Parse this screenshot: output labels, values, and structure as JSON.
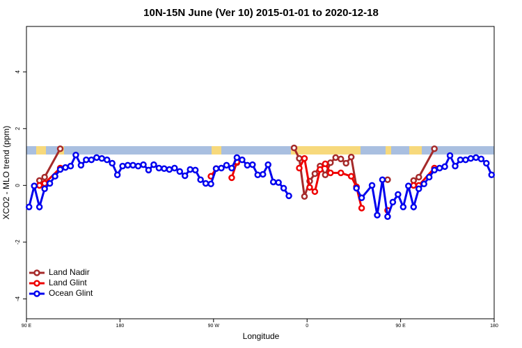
{
  "chart_data": {
    "type": "line",
    "title": "10N-15N June (Ver 10)   2015-01-01 to 2020-12-18",
    "x_label": "Longitude",
    "y_label": "XCO2 - MLO trend (ppm)",
    "xlim": [
      90,
      540
    ],
    "xticks": [
      {
        "value": 90,
        "label": "90 E"
      },
      {
        "value": 180,
        "label": "180"
      },
      {
        "value": 270,
        "label": "90 W"
      },
      {
        "value": 360,
        "label": "0"
      },
      {
        "value": 450,
        "label": "90 E"
      },
      {
        "value": 540,
        "label": "180"
      }
    ],
    "ylim": [
      -4.7,
      5.6
    ],
    "yticks": [
      -4,
      -2,
      0,
      2,
      4
    ],
    "legend": "bottom-left",
    "series": [
      {
        "name": "Land Nadir",
        "color": "#a52a2a",
        "x": [
          102.5,
          107.5,
          122.5,
          125,
          292.5,
          295,
          347.5,
          352.5,
          357.5,
          362.5,
          367.5,
          372.5,
          377.5,
          382.5,
          387.5,
          392.5,
          397.5,
          402.5,
          407.5,
          410,
          437.5,
          440,
          462.5,
          467.5,
          482.5
        ],
        "values": [
          0.17,
          0.29,
          1.29,
          null,
          0.8,
          null,
          1.32,
          0.95,
          -0.39,
          0.15,
          0.41,
          0.68,
          0.37,
          0.8,
          0.98,
          0.93,
          0.78,
          1.0,
          -0.05,
          null,
          0.2,
          null,
          0.17,
          0.29,
          1.29
        ]
      },
      {
        "name": "Land Glint",
        "color": "#ee0000",
        "x": [
          102.5,
          107.5,
          122.5,
          125,
          267.5,
          272.5,
          280,
          287.5,
          292.5,
          295,
          352.5,
          357.5,
          362.5,
          367.5,
          372.5,
          377.5,
          382.5,
          392.5,
          402.5,
          407.5,
          412.5,
          415,
          437.5,
          440,
          462.5,
          467.5,
          482.5
        ],
        "values": [
          0,
          0.07,
          0.61,
          null,
          0.32,
          0.59,
          null,
          0.27,
          0.83,
          null,
          0.61,
          0.95,
          -0.07,
          -0.22,
          0.56,
          0.76,
          0.44,
          0.44,
          0.32,
          -0.05,
          -0.8,
          null,
          -0.88,
          null,
          0,
          0,
          0.61
        ]
      },
      {
        "name": "Ocean Glint",
        "color": "#0000ee",
        "x": [
          92.5,
          97.5,
          102.5,
          107.5,
          112.5,
          117.5,
          122.5,
          127.5,
          132.5,
          137.5,
          142.5,
          147.5,
          152.5,
          157.5,
          162.5,
          167.5,
          172.5,
          177.5,
          182.5,
          187.5,
          192.5,
          197.5,
          202.5,
          207.5,
          212.5,
          217.5,
          222.5,
          227.5,
          232.5,
          237.5,
          242.5,
          247.5,
          252.5,
          257.5,
          262.5,
          267.5,
          272.5,
          277.5,
          282.5,
          287.5,
          292.5,
          297.5,
          302.5,
          307.5,
          312.5,
          317.5,
          322.5,
          327.5,
          332.5,
          337.5,
          342.5,
          375,
          407.5,
          412.5,
          422.5,
          427.5,
          432.5,
          437.5,
          442.5,
          447.5,
          452.5,
          457.5,
          462.5,
          467.5,
          472.5,
          477.5,
          482.5,
          487.5,
          492.5,
          497.5,
          502.5,
          507.5,
          512.5,
          517.5,
          522.5,
          527.5,
          532.5,
          537.5
        ],
        "values": [
          -0.76,
          -0.02,
          -0.76,
          -0.12,
          0.07,
          0.32,
          0.56,
          0.63,
          0.68,
          1.07,
          0.71,
          0.9,
          0.9,
          0.98,
          0.95,
          0.9,
          0.78,
          0.37,
          0.68,
          0.71,
          0.71,
          0.68,
          0.73,
          0.54,
          0.73,
          0.61,
          0.59,
          0.56,
          0.61,
          0.49,
          0.34,
          0.56,
          0.54,
          0.2,
          0.07,
          0.05,
          0.59,
          0.61,
          0.71,
          0.61,
          0.98,
          0.9,
          0.71,
          0.73,
          0.37,
          0.39,
          0.73,
          0.12,
          0.1,
          -0.1,
          -0.37,
          null,
          -0.1,
          -0.44,
          0,
          -1.05,
          0.2,
          -1.1,
          -0.59,
          -0.32,
          -0.76,
          -0.02,
          -0.76,
          -0.12,
          0.05,
          0.29,
          0.54,
          0.61,
          0.66,
          1.05,
          0.68,
          0.9,
          0.9,
          0.95,
          0.98,
          0.93,
          0.78,
          0.37
        ]
      }
    ]
  }
}
